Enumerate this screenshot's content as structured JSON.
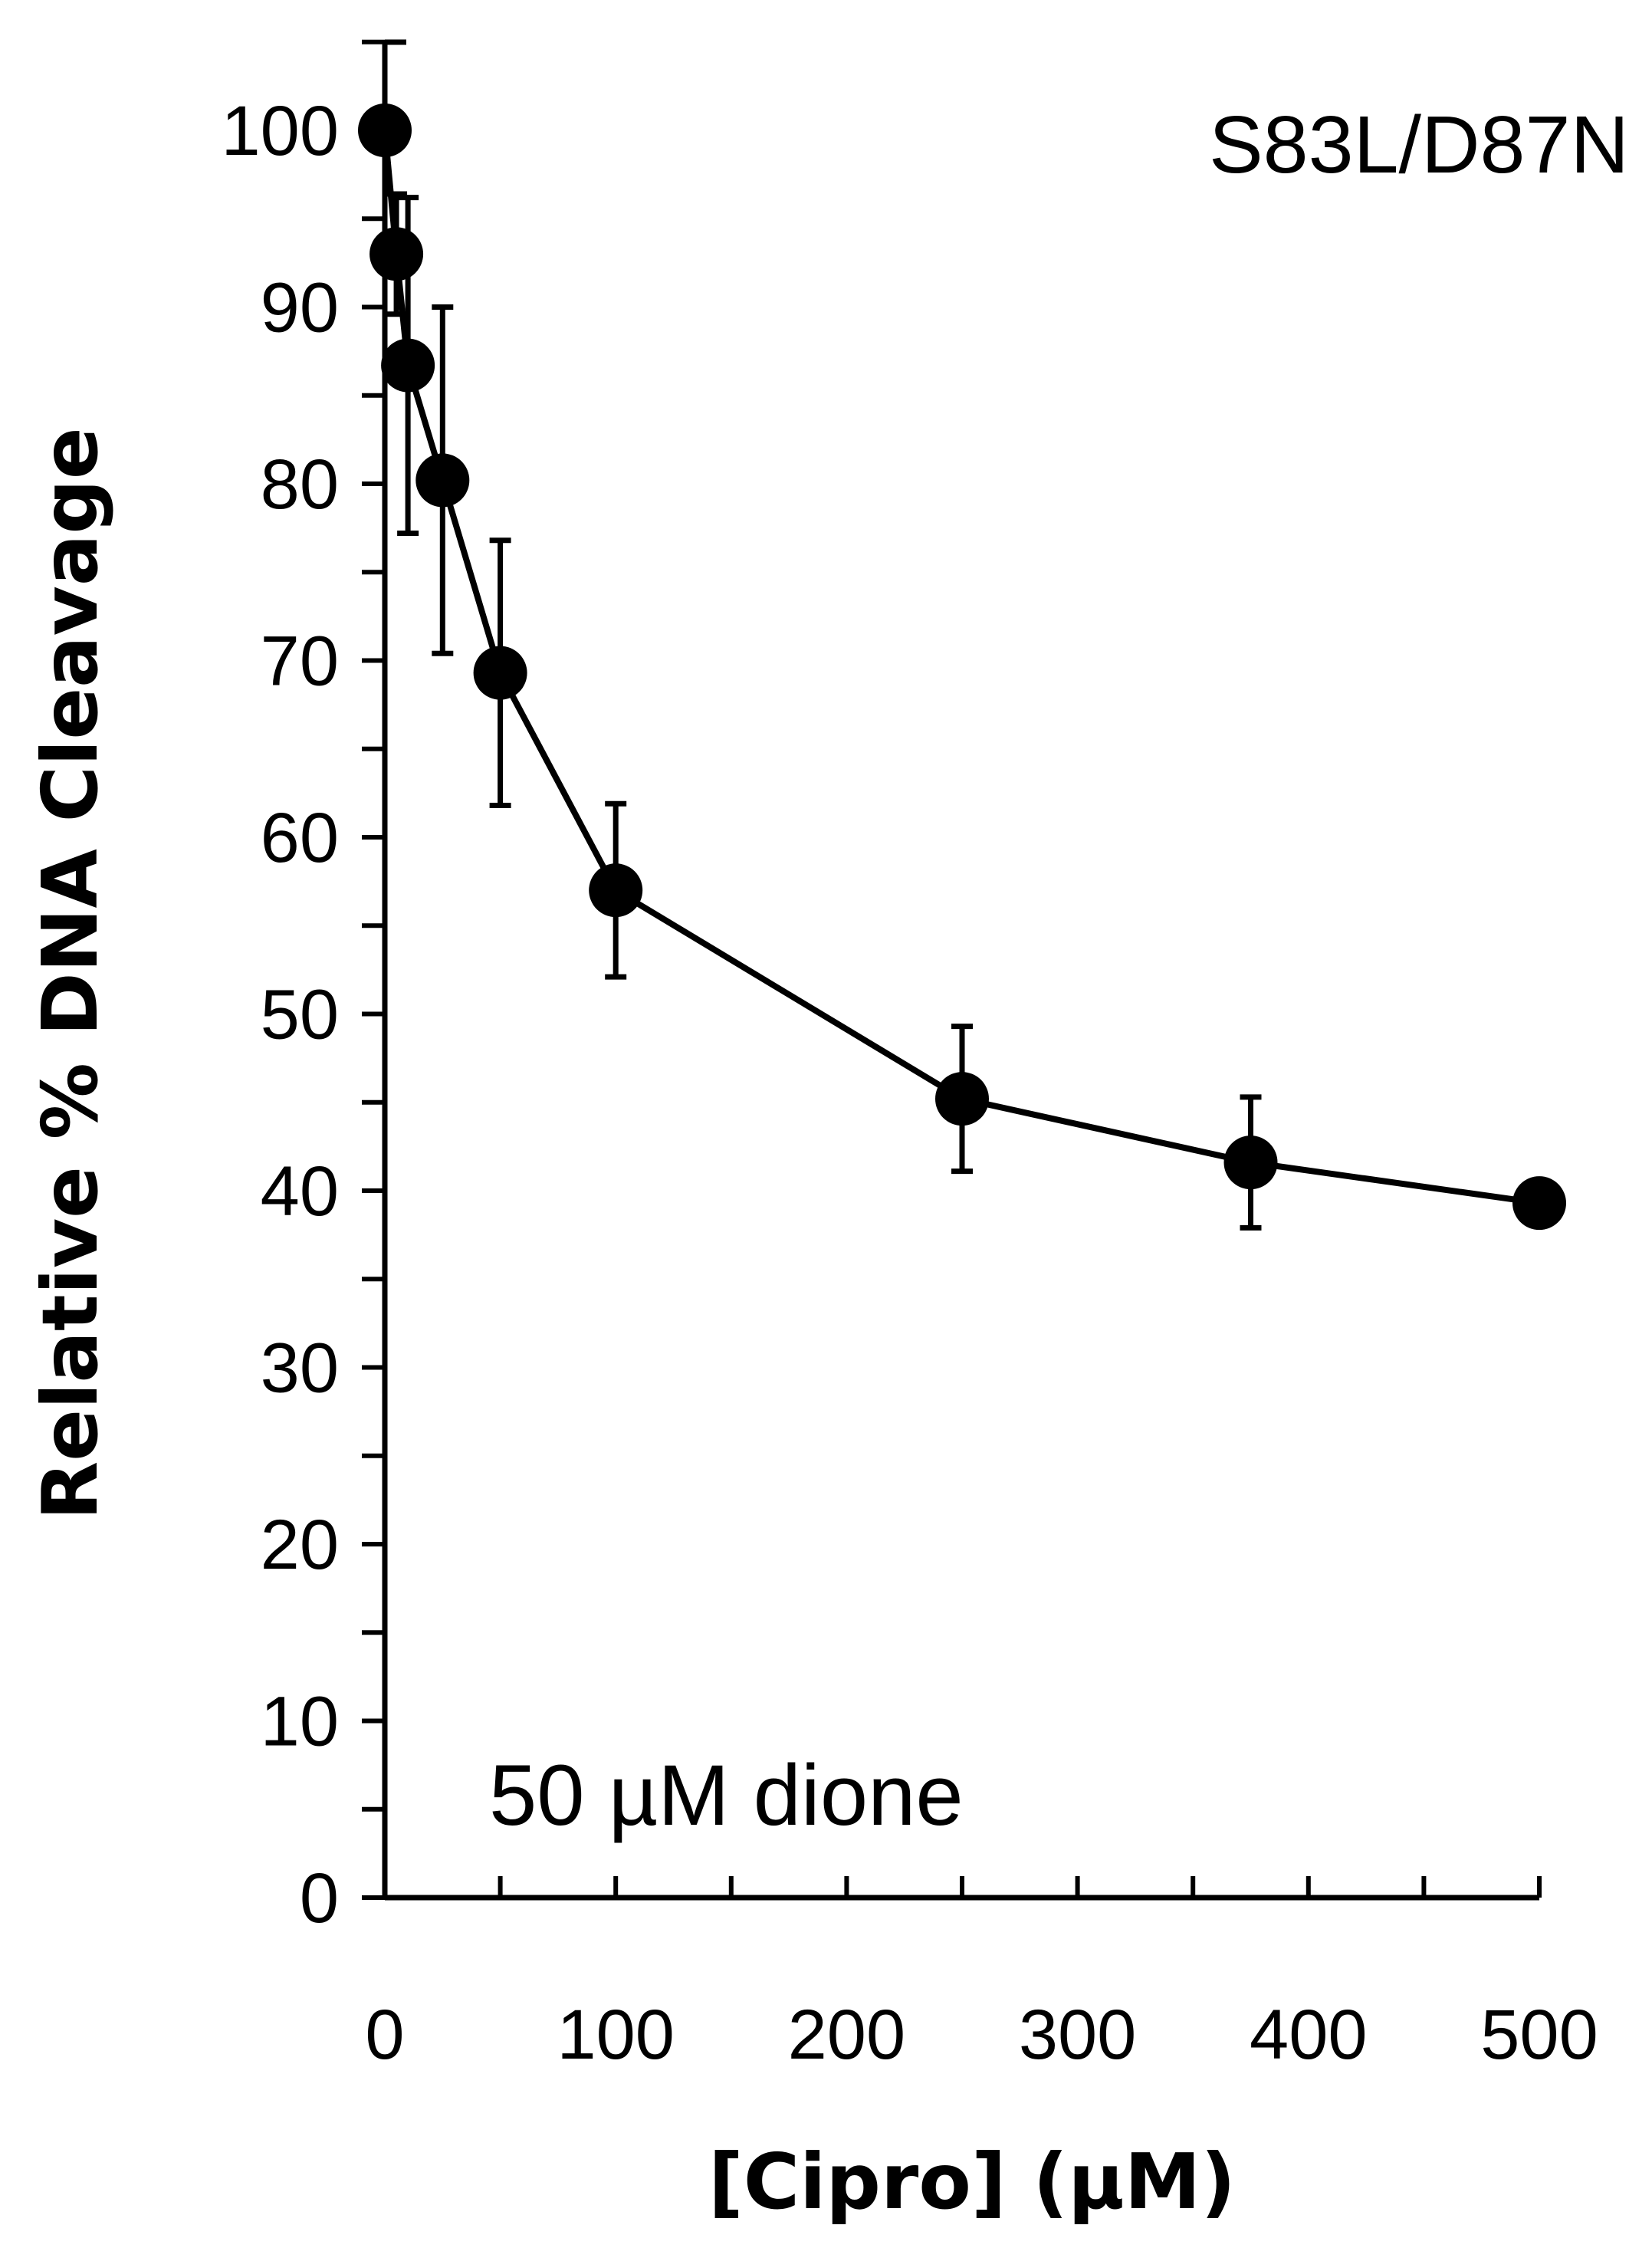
{
  "chart_data": {
    "type": "line",
    "title": "",
    "xlabel": "[Cipro] (µM)",
    "ylabel": "Relative % DNA Cleavage",
    "xlim": [
      0,
      500
    ],
    "ylim": [
      0,
      100
    ],
    "x_ticks": [
      0,
      100,
      200,
      300,
      400,
      500
    ],
    "y_ticks": [
      0,
      10,
      20,
      30,
      40,
      50,
      60,
      70,
      80,
      90,
      100
    ],
    "grid": false,
    "annotations": [
      "S83L/D87N",
      "50 µM dione"
    ],
    "series": [
      {
        "x": [
          0,
          5,
          10,
          25,
          50,
          100,
          250,
          375,
          500
        ],
        "y": [
          100,
          93,
          86.7,
          80.2,
          69.3,
          57,
          45.2,
          41.6,
          39.3
        ],
        "error": [
          0,
          3.4,
          9.5,
          9.8,
          7.5,
          4.9,
          4.1,
          3.7,
          0
        ],
        "marker": "filled-circle",
        "color": "#000000"
      }
    ]
  }
}
